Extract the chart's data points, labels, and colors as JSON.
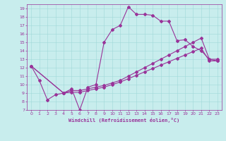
{
  "xlabel": "Windchill (Refroidissement éolien,°C)",
  "bg_color": "#c8eded",
  "line_color": "#993399",
  "grid_color": "#a0d8d8",
  "xlim": [
    -0.5,
    23.5
  ],
  "ylim": [
    7,
    19.5
  ],
  "xticks": [
    0,
    1,
    2,
    3,
    4,
    5,
    6,
    7,
    8,
    9,
    10,
    11,
    12,
    13,
    14,
    15,
    16,
    17,
    18,
    19,
    20,
    21,
    22,
    23
  ],
  "yticks": [
    7,
    8,
    9,
    10,
    11,
    12,
    13,
    14,
    15,
    16,
    17,
    18,
    19
  ],
  "line1_x": [
    0,
    1,
    2,
    3,
    4,
    5,
    6,
    7,
    8,
    9,
    10,
    11,
    12,
    13,
    14,
    15,
    16,
    17,
    18,
    19,
    20,
    21,
    22,
    23
  ],
  "line1_y": [
    12.2,
    10.5,
    8.2,
    8.8,
    9.0,
    9.5,
    7.0,
    9.7,
    10.0,
    15.0,
    16.5,
    17.0,
    19.2,
    18.3,
    18.3,
    18.2,
    17.5,
    17.5,
    15.2,
    15.3,
    14.5,
    14.0,
    13.0,
    13.0
  ],
  "line2_x": [
    0,
    4,
    5,
    6,
    7,
    8,
    9,
    10,
    11,
    12,
    13,
    14,
    15,
    16,
    17,
    18,
    19,
    20,
    21,
    22,
    23
  ],
  "line2_y": [
    12.2,
    9.0,
    9.3,
    9.3,
    9.5,
    9.7,
    9.9,
    10.2,
    10.5,
    11.0,
    11.5,
    12.0,
    12.5,
    13.0,
    13.5,
    14.0,
    14.5,
    15.0,
    15.5,
    13.0,
    12.8
  ],
  "line3_x": [
    0,
    4,
    5,
    6,
    7,
    8,
    9,
    10,
    11,
    12,
    13,
    14,
    15,
    16,
    17,
    18,
    19,
    20,
    21,
    22,
    23
  ],
  "line3_y": [
    12.2,
    9.0,
    9.1,
    9.1,
    9.3,
    9.5,
    9.7,
    10.0,
    10.3,
    10.7,
    11.1,
    11.5,
    11.9,
    12.3,
    12.7,
    13.1,
    13.5,
    13.9,
    14.3,
    12.8,
    12.8
  ]
}
